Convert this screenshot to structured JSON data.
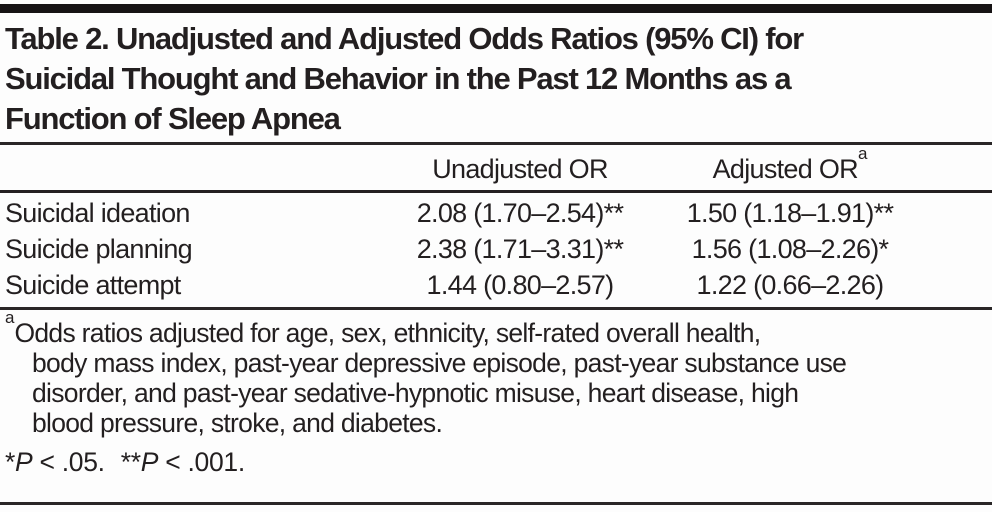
{
  "table_title": {
    "lines": [
      "Table 2. Unadjusted and Adjusted Odds Ratios (95% CI) for",
      "Suicidal Thought and Behavior in the Past 12 Months as a",
      "Function of Sleep Apnea"
    ],
    "full": "Table 2. Unadjusted and Adjusted Odds Ratios (95% CI) for Suicidal Thought and Behavior in the Past 12 Months as a Function of Sleep Apnea"
  },
  "table": {
    "headers": {
      "col1": "",
      "col2": "Unadjusted OR",
      "col3": "Adjusted OR",
      "col3_superscript": "a"
    },
    "rows": [
      {
        "label": "Suicidal ideation",
        "unadjusted": "2.08 (1.70–2.54)**",
        "adjusted": "1.50 (1.18–1.91)**"
      },
      {
        "label": "Suicide planning",
        "unadjusted": "2.38 (1.71–3.31)**",
        "adjusted": "1.56 (1.08–2.26)*"
      },
      {
        "label": "Suicide attempt",
        "unadjusted": "1.44 (0.80–2.57)",
        "adjusted": "1.22 (0.66–2.26)"
      }
    ]
  },
  "footnote": {
    "marker": "a",
    "lines": [
      "Odds ratios adjusted for age, sex, ethnicity, self-rated overall health,",
      "body mass index, past-year depressive episode, past-year substance use",
      "disorder, and past-year sedative-hypnotic misuse, heart disease, high",
      "blood pressure, stroke, and diabetes."
    ]
  },
  "significance": {
    "star1": "*",
    "p1": "P",
    "rest1": " < .05.",
    "star2": "**",
    "p2": "P",
    "rest2": " < .001."
  },
  "colors": {
    "text": "#231f20",
    "rule": "#2a2627",
    "top_bar": "#161314",
    "background": "#fdfdfd"
  }
}
